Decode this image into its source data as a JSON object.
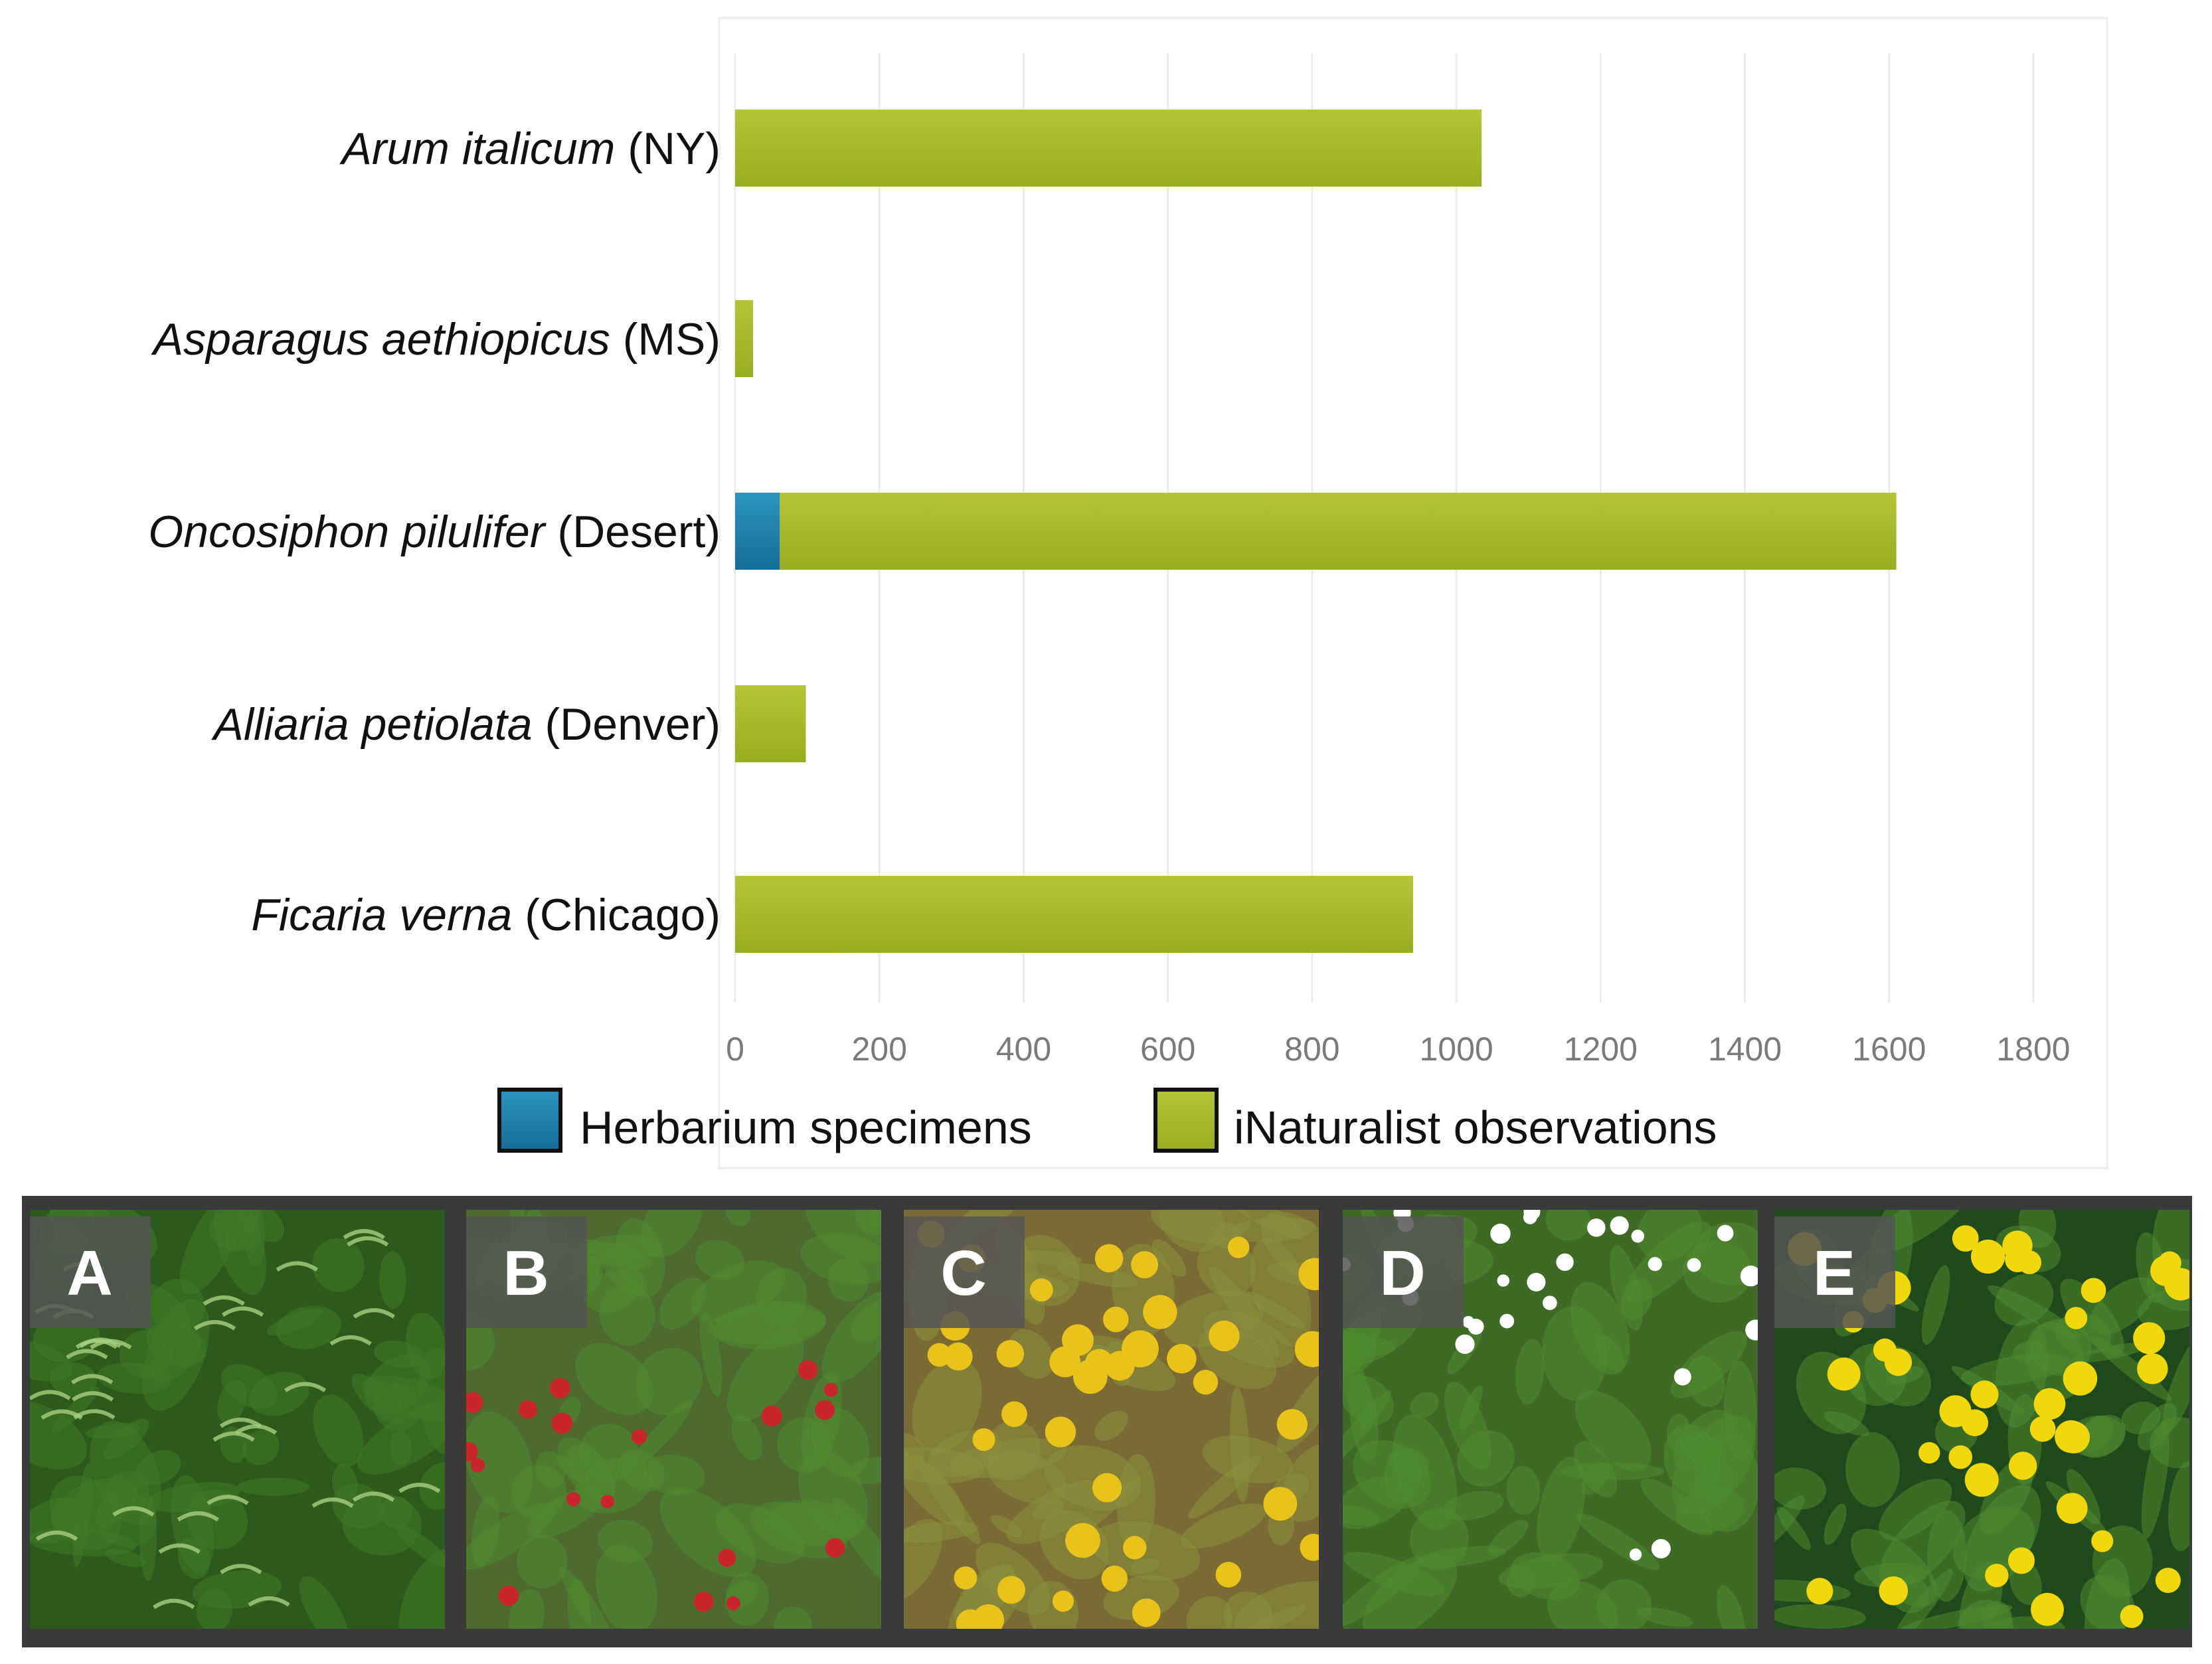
{
  "chart_data": {
    "type": "bar",
    "orientation": "horizontal",
    "stacked": true,
    "categories": [
      {
        "species": "Arum italicum",
        "region": "(NY)"
      },
      {
        "species": "Asparagus aethiopicus",
        "region": "(MS)"
      },
      {
        "species": "Oncosiphon pilulifer",
        "region": "(Desert)"
      },
      {
        "species": "Alliaria petiolata",
        "region": "(Denver)"
      },
      {
        "species": "Ficaria verna",
        "region": "(Chicago)"
      }
    ],
    "series": [
      {
        "name": "Herbarium specimens",
        "color": "#1b7fae",
        "values": [
          0,
          0,
          62,
          0,
          0
        ]
      },
      {
        "name": "iNaturalist observations",
        "color": "#abbd2a",
        "values": [
          1035,
          25,
          1548,
          98,
          940
        ]
      }
    ],
    "xlim": [
      0,
      1800
    ],
    "xticks": [
      "0",
      "200",
      "400",
      "600",
      "800",
      "1000",
      "1200",
      "1400",
      "1600",
      "1800"
    ],
    "grid": true,
    "legend_position": "bottom"
  },
  "photo_panels": [
    {
      "letter": "A",
      "subject": "arum-leaves",
      "colors": [
        "#2c5a1c",
        "#a9cf7e"
      ]
    },
    {
      "letter": "B",
      "subject": "asparagus-berries",
      "colors": [
        "#4e6a2e",
        "#c8262a"
      ]
    },
    {
      "letter": "C",
      "subject": "oncosiphon-flowers",
      "colors": [
        "#7a6a34",
        "#e9c21a"
      ]
    },
    {
      "letter": "D",
      "subject": "alliaria-flowers",
      "colors": [
        "#3e6a26",
        "#ffffff"
      ]
    },
    {
      "letter": "E",
      "subject": "ficaria-flowers",
      "colors": [
        "#1f4a1c",
        "#f1d80c"
      ]
    }
  ]
}
